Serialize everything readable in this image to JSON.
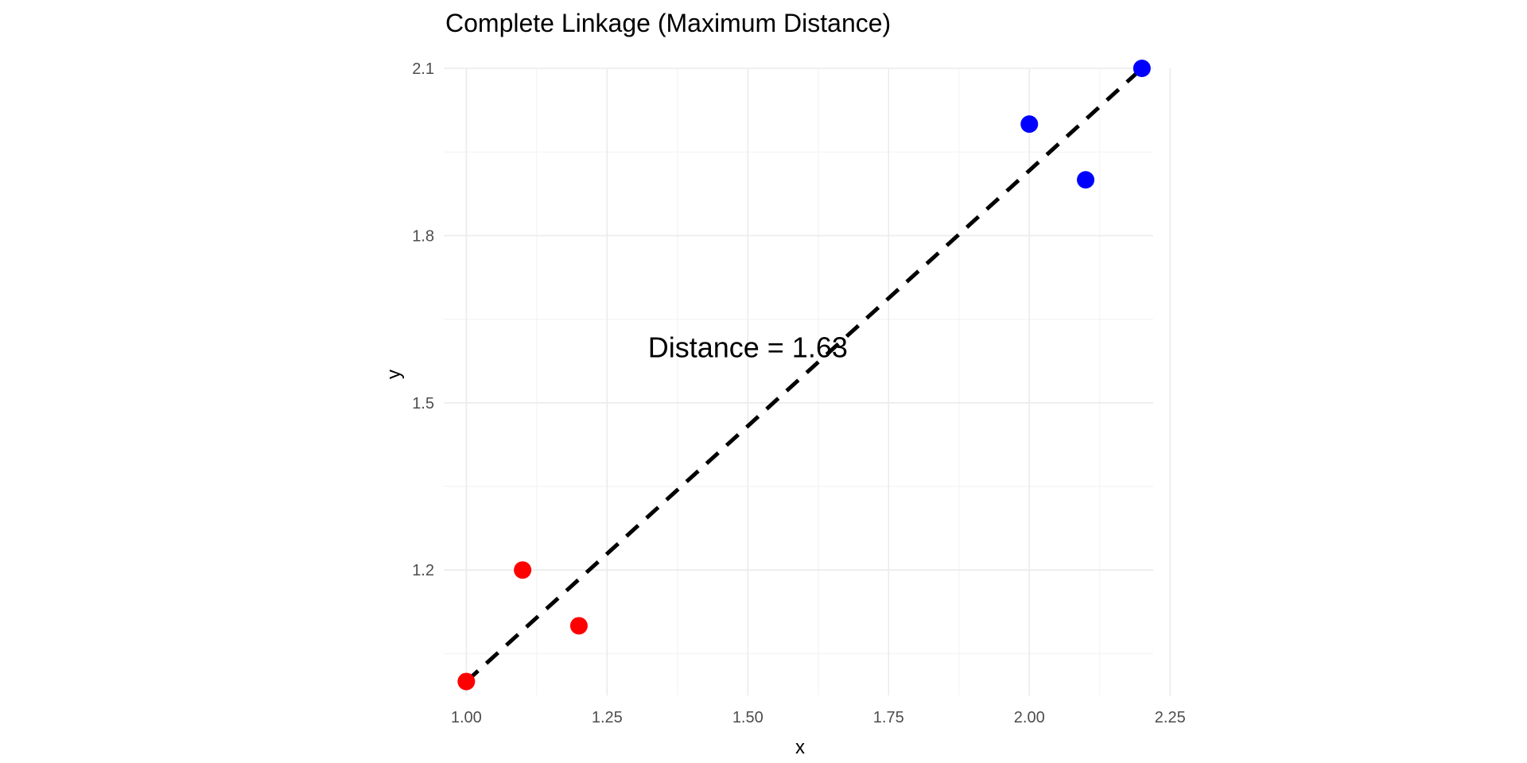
{
  "chart_data": {
    "type": "scatter",
    "title": "Complete Linkage (Maximum Distance)",
    "xlabel": "x",
    "ylabel": "y",
    "xlim": [
      0.96,
      2.22
    ],
    "ylim": [
      0.975,
      2.1
    ],
    "x_ticks": [
      1.0,
      1.25,
      1.5,
      1.75,
      2.0,
      2.25
    ],
    "x_tick_labels": [
      "1.00",
      "1.25",
      "1.50",
      "1.75",
      "2.00",
      "2.25"
    ],
    "y_ticks": [
      1.2,
      1.5,
      1.8,
      2.1
    ],
    "y_tick_labels": [
      "1.2",
      "1.5",
      "1.8",
      "2.1"
    ],
    "grid": true,
    "legend": "none",
    "series": [
      {
        "color": "#ff0000",
        "x": [
          1.0,
          1.1,
          1.2
        ],
        "y": [
          1.0,
          1.2,
          1.1
        ]
      },
      {
        "color": "#0000ff",
        "x": [
          2.0,
          2.1,
          2.2
        ],
        "y": [
          2.0,
          1.9,
          2.1
        ]
      }
    ],
    "line_segment": {
      "x": [
        1.0,
        2.2
      ],
      "y": [
        1.0,
        2.1
      ],
      "style": "dashed",
      "color": "#000000"
    },
    "annotation": {
      "text": "Distance = 1.63",
      "x": 1.5,
      "y": 1.6
    }
  }
}
